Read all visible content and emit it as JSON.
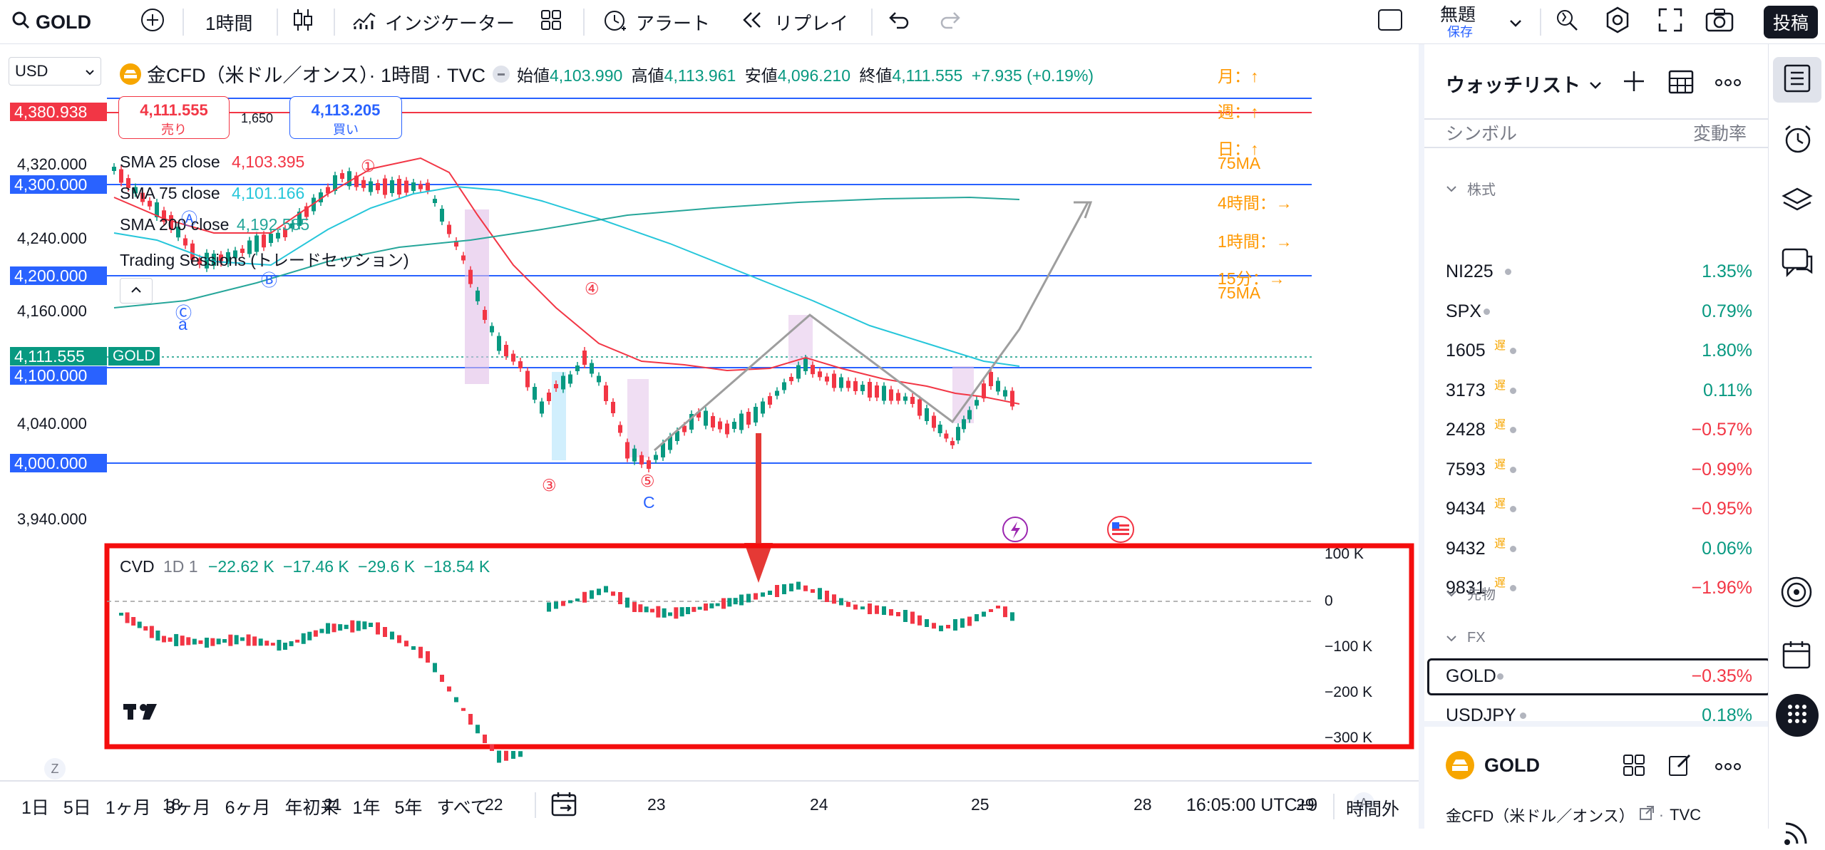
{
  "toolbar": {
    "symbol": "GOLD",
    "interval": "1時間",
    "indicators": "インジケーター",
    "alert": "アラート",
    "replay": "リプレイ",
    "layout_name": "無題",
    "layout_save": "保存",
    "publish": "投稿"
  },
  "chart": {
    "currency": "USD",
    "title": "金CFD（米ドル／オンス）· 1時間 · TVC",
    "ohlc": {
      "open_label": "始値",
      "open": "4,103.990",
      "high_label": "高値",
      "high": "4,113.961",
      "low_label": "安値",
      "low": "4,096.210",
      "close_label": "終値",
      "close": "4,111.555",
      "change": "+7.935 (+0.19%)"
    },
    "sell_price": "4,111.555",
    "sell_label": "売り",
    "spread": "1,650",
    "buy_price": "4,113.205",
    "buy_label": "買い",
    "sma25": "SMA 25 close",
    "sma25_val": "4,103.395",
    "sma75": "SMA 75 close",
    "sma75_val": "4,101.166",
    "sma200": "SMA 200 close",
    "sma200_val": "4,192.585",
    "sessions": "Trading Sessions (トレードセッション)",
    "price_badges": [
      {
        "text": "4,380.938",
        "color": "#f23645"
      },
      {
        "text": "4,300.000",
        "color": "#2962ff"
      },
      {
        "text": "4,200.000",
        "color": "#2962ff"
      },
      {
        "text": "4,111.555",
        "color": "#089981"
      },
      {
        "text": "4,100.000",
        "color": "#2962ff"
      },
      {
        "text": "4,000.000",
        "color": "#2962ff"
      }
    ],
    "gold_tag": "GOLD",
    "y_labels": [
      "4,320.000",
      "4,240.000",
      "4,160.000",
      "4,040.000",
      "3,940.000"
    ],
    "x_labels": [
      "18",
      "21",
      "22",
      "23",
      "24",
      "25",
      "28",
      "29"
    ],
    "annotations": {
      "month": "月：↑",
      "week": "週：↑",
      "day": "日：↑",
      "day_ma": "75MA",
      "h4": "4時間：→",
      "h1": "1時間：→",
      "m15": "15分：→",
      "m15_ma": "75MA",
      "n1": "①",
      "n3": "③",
      "n4": "④",
      "n5": "⑤",
      "c_circle": "Ⓒ",
      "a_letter": "a",
      "A_circle": "Ⓐ",
      "B_circle": "Ⓑ",
      "C_letter": "C"
    },
    "cvd": {
      "label": "CVD",
      "params": "1D 1",
      "v1": "−22.62 K",
      "v2": "−17.46 K",
      "v3": "−29.6 K",
      "v4": "−18.54 K",
      "y_labels": [
        "100 K",
        "0",
        "−100 K",
        "−200 K",
        "−300 K"
      ]
    },
    "z_btn": "Z",
    "a_btn": "A"
  },
  "bottombar": {
    "ranges": [
      "1日",
      "5日",
      "1ヶ月",
      "3ヶ月",
      "6ヶ月",
      "年初来",
      "1年",
      "5年",
      "すべて"
    ],
    "time": "16:05:00 UTC+9",
    "session": "時間外"
  },
  "watchlist": {
    "title": "ウォッチリスト",
    "col_symbol": "シンボル",
    "col_change": "変動率",
    "section_stocks": "株式",
    "section_futures": "先物",
    "section_fx": "FX",
    "late": "遅",
    "stocks": [
      {
        "sym": "NI225",
        "chg": "1.35%",
        "up": true,
        "late": false
      },
      {
        "sym": "SPX",
        "chg": "0.79%",
        "up": true,
        "late": false
      },
      {
        "sym": "1605",
        "chg": "1.80%",
        "up": true,
        "late": true
      },
      {
        "sym": "3173",
        "chg": "0.11%",
        "up": true,
        "late": true
      },
      {
        "sym": "2428",
        "chg": "−0.57%",
        "up": false,
        "late": true
      },
      {
        "sym": "7593",
        "chg": "−0.99%",
        "up": false,
        "late": true
      },
      {
        "sym": "9434",
        "chg": "−0.95%",
        "up": false,
        "late": true
      },
      {
        "sym": "9432",
        "chg": "0.06%",
        "up": true,
        "late": true
      },
      {
        "sym": "9831",
        "chg": "−1.96%",
        "up": false,
        "late": true
      }
    ],
    "fx": [
      {
        "sym": "GOLD",
        "chg": "−0.35%",
        "up": false
      },
      {
        "sym": "USDJPY",
        "chg": "0.18%",
        "up": true
      }
    ],
    "detail_symbol": "GOLD",
    "detail_name": "金CFD（米ドル／オンス）",
    "detail_src": "TVC"
  },
  "colors": {
    "up": "#089981",
    "down": "#f23645",
    "blue": "#2962ff",
    "orange": "#ff9800",
    "sma25": "#f23645",
    "sma75": "#26c6da",
    "sma200": "#26a69a"
  }
}
